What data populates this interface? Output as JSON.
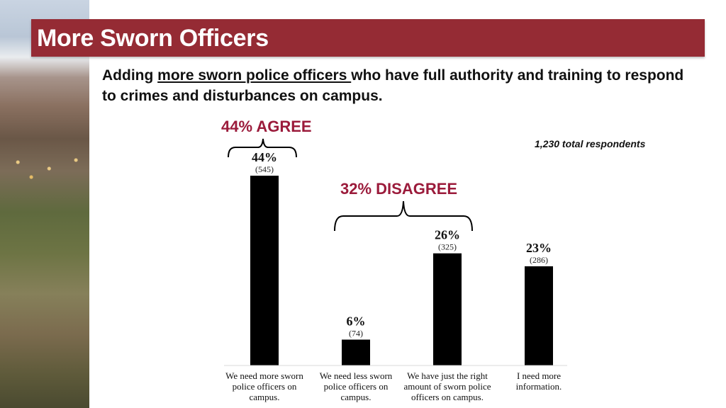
{
  "slide": {
    "title": "More Sworn Officers",
    "subtitle_pre": "Adding ",
    "subtitle_underlined": "more sworn police officers ",
    "subtitle_post": "who have full authority and training to respond to crimes and disturbances on campus.",
    "agree_label": "44% AGREE",
    "disagree_label": "32% DISAGREE",
    "respondents": "1,230 total respondents"
  },
  "colors": {
    "title_bar": "#952b34",
    "accent_text": "#9b1b3b",
    "bar": "#000000"
  },
  "chart_data": {
    "type": "bar",
    "title": "",
    "xlabel": "",
    "ylabel": "",
    "ylim": [
      0,
      50
    ],
    "grid": false,
    "categories": [
      [
        "We need more sworn",
        "police officers on",
        "campus."
      ],
      [
        "We need less sworn",
        "police officers on",
        "campus."
      ],
      [
        "We have just the right",
        "amount of sworn police",
        "officers on campus."
      ],
      [
        "I need more",
        "information."
      ]
    ],
    "values": [
      44,
      6,
      26,
      23
    ],
    "value_labels": [
      "44%",
      "6%",
      "26%",
      "23%"
    ],
    "counts": [
      "(545)",
      "(74)",
      "(325)",
      "(286)"
    ]
  }
}
